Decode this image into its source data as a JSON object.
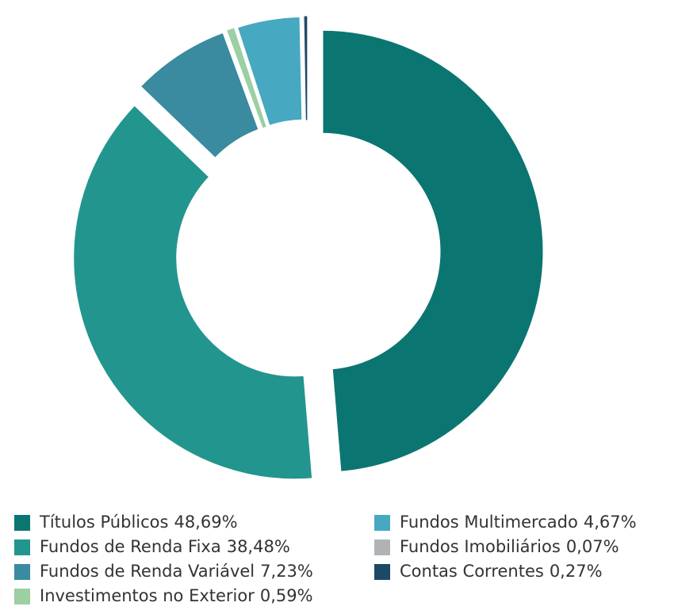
{
  "chart_data": {
    "type": "donut",
    "categories": [
      "Títulos Públicos",
      "Fundos de Renda Fixa",
      "Fundos de Renda Variável",
      "Investimentos no Exterior",
      "Fundos Multimercado",
      "Fundos Imobiliários",
      "Contas Correntes"
    ],
    "values": [
      48.69,
      38.48,
      7.23,
      0.59,
      4.67,
      0.07,
      0.27
    ],
    "value_labels": [
      "48,69%",
      "38,48%",
      "7,23%",
      "0,59%",
      "4,67%",
      "0,07%",
      "0,27%"
    ],
    "colors": [
      "#0b7571",
      "#22958e",
      "#3a8aa0",
      "#9ccfa2",
      "#46a8c1",
      "#b0b3b6",
      "#1d4866"
    ],
    "legend": "bottom"
  }
}
